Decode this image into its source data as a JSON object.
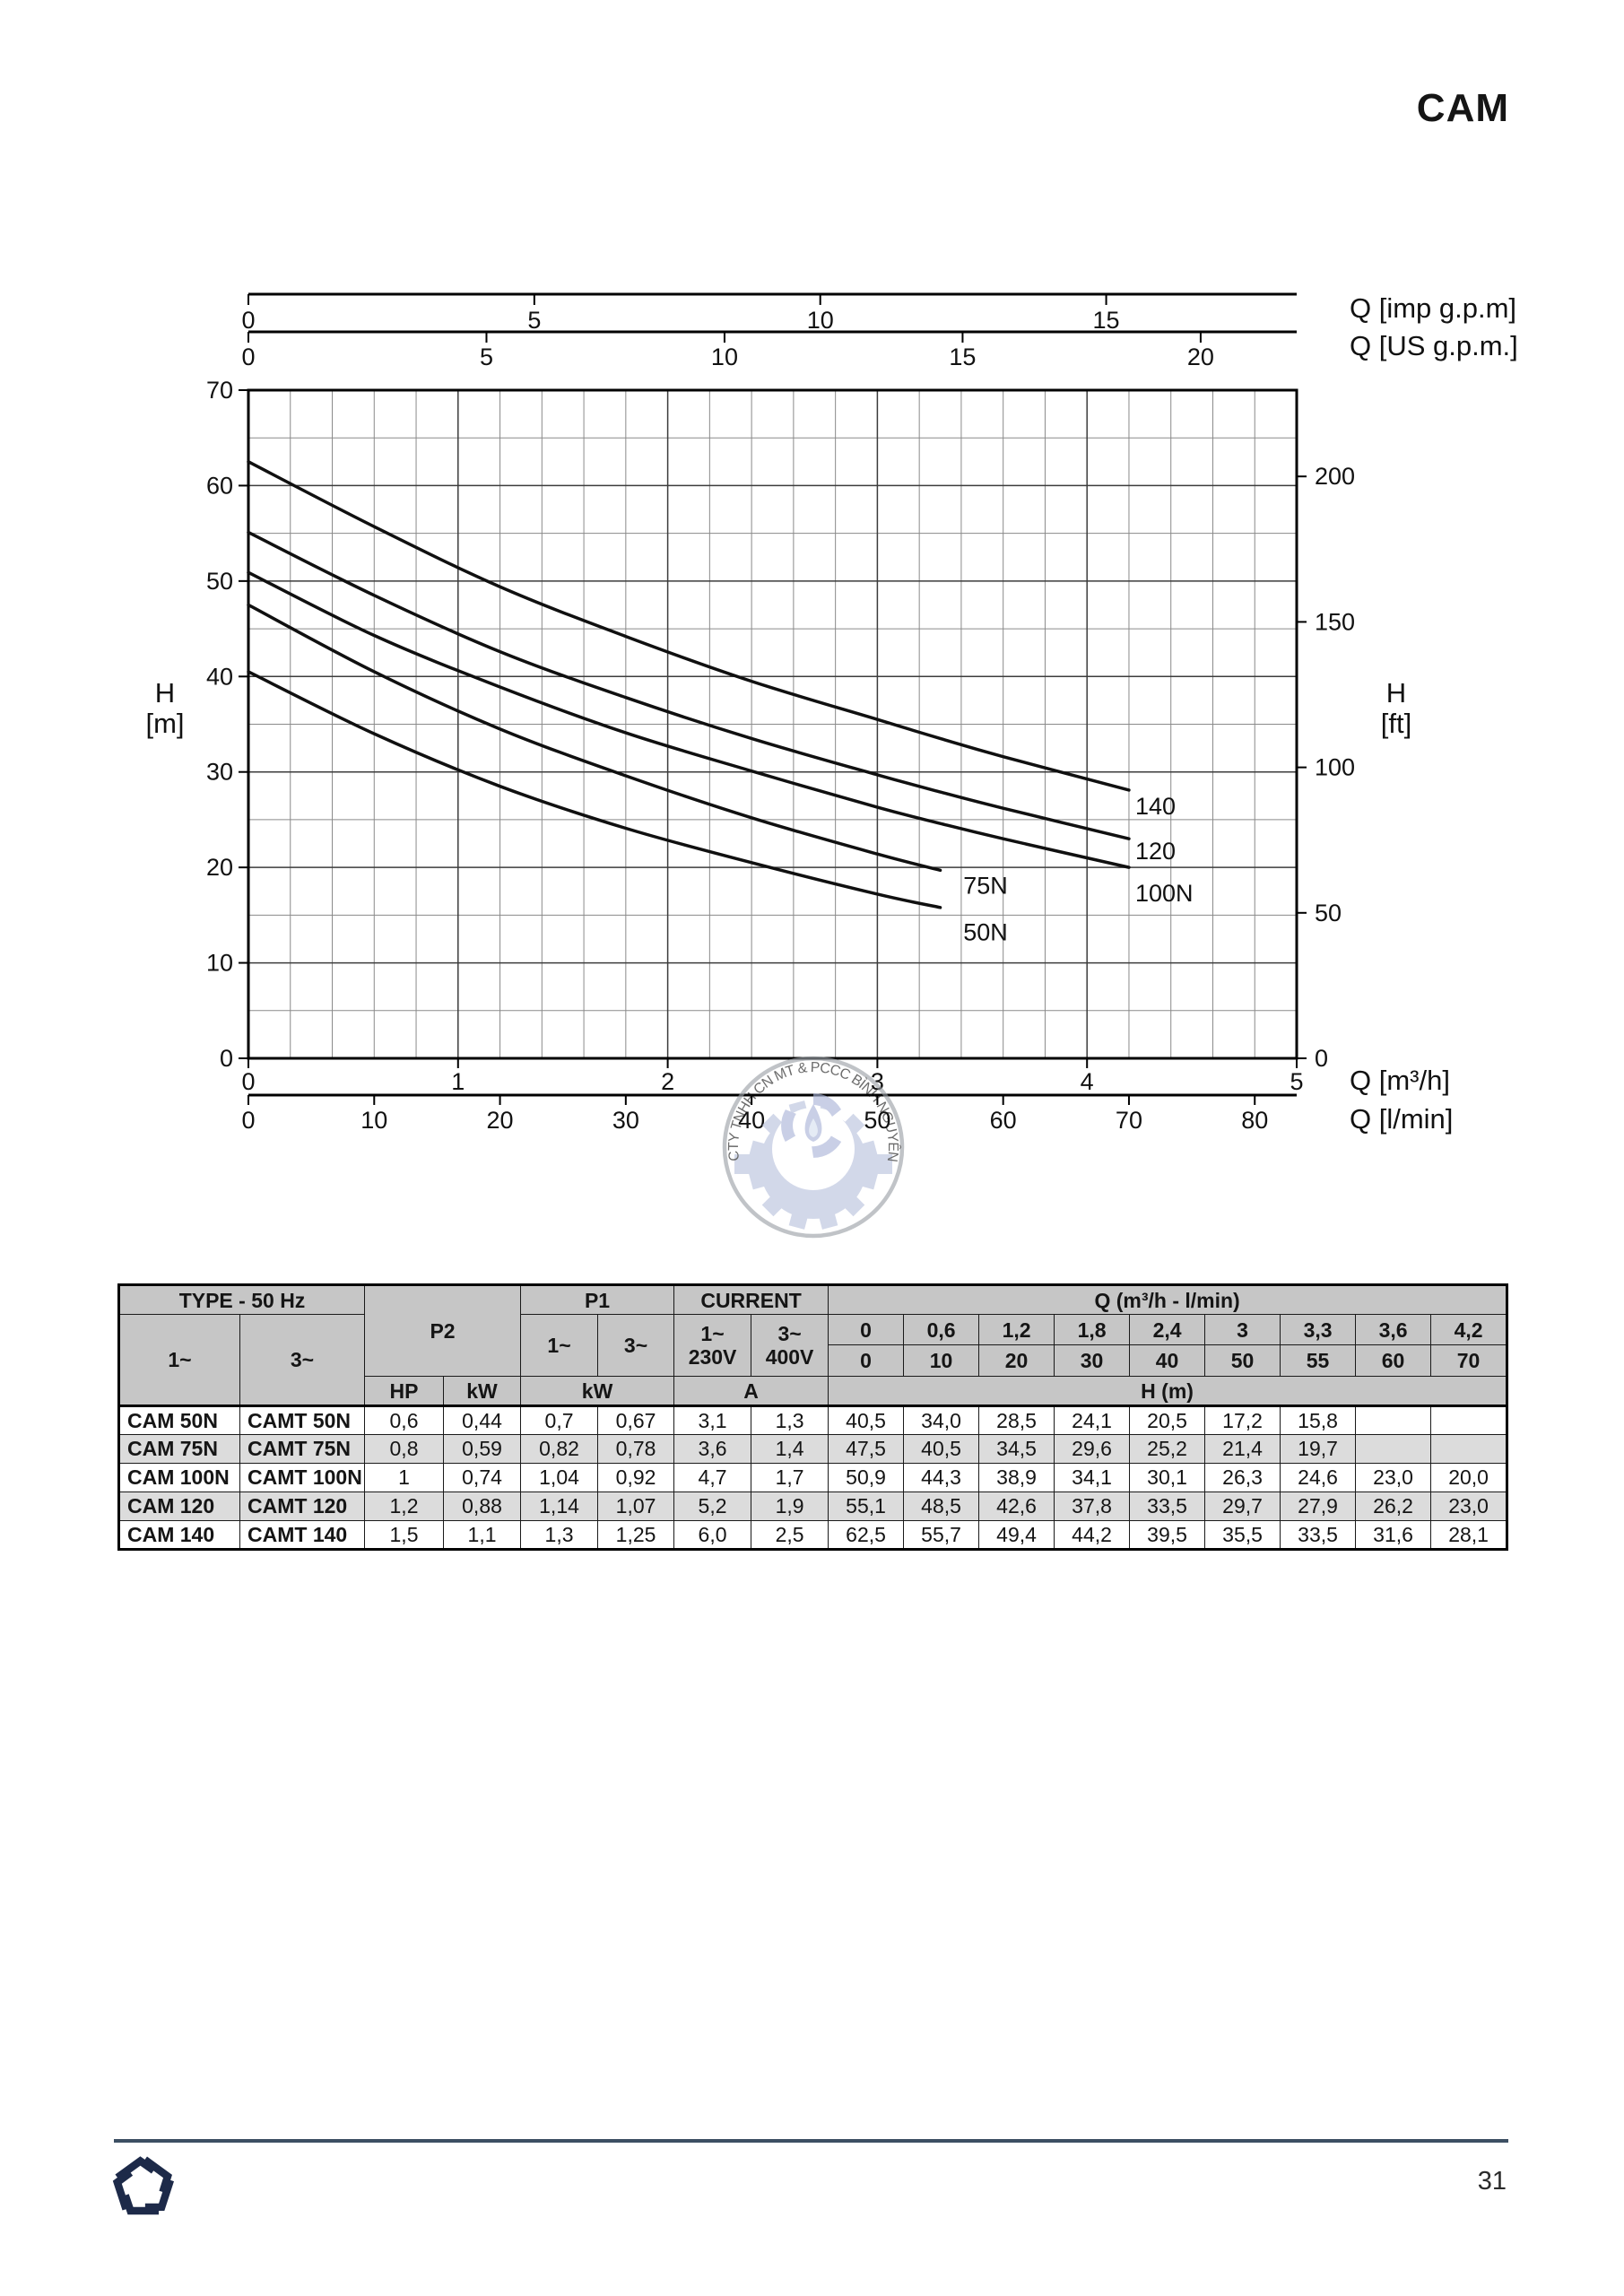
{
  "page": {
    "title": "CAM",
    "page_number": "31"
  },
  "chart": {
    "top_axis1_label": "Q [imp g.p.m]",
    "top_axis2_label": "Q [US g.p.m.]",
    "left_axis_label_line1": "H",
    "left_axis_label_line2": "[m]",
    "right_axis_label_line1": "H",
    "right_axis_label_line2": "[ft]",
    "bottom_axis1_label": "Q [m³/h]",
    "bottom_axis2_label": "Q [l/min]"
  },
  "chart_data": {
    "type": "line",
    "title": "",
    "xlabel": "Q [m³/h]",
    "ylabel": "H [m]",
    "xlim": [
      0,
      5
    ],
    "ylim": [
      0,
      70
    ],
    "grid": "on",
    "x_axis_m3h": {
      "ticks": [
        0,
        1,
        2,
        3,
        4,
        5
      ],
      "minor_step": 0.2
    },
    "x_axis_lmin": {
      "ticks": [
        0,
        10,
        20,
        30,
        40,
        50,
        60,
        70,
        80
      ]
    },
    "x_axis_imp_gpm": {
      "ticks": [
        0,
        5,
        10,
        15
      ]
    },
    "x_axis_us_gpm": {
      "ticks": [
        0,
        5,
        10,
        15,
        20
      ]
    },
    "y_axis_m": {
      "ticks": [
        0,
        10,
        20,
        30,
        40,
        50,
        60,
        70
      ],
      "minor_step": 5
    },
    "y_axis_ft": {
      "ticks": [
        0,
        50,
        100,
        150,
        200
      ]
    },
    "q_m3h": [
      0,
      0.6,
      1.2,
      1.8,
      2.4,
      3,
      3.3,
      3.6,
      4.2
    ],
    "series": [
      {
        "name": "50N",
        "h": [
          40.5,
          34.0,
          28.5,
          24.1,
          20.5,
          17.2,
          15.8
        ],
        "label_at": [
          3.41,
          13.2
        ]
      },
      {
        "name": "75N",
        "h": [
          47.5,
          40.5,
          34.5,
          29.6,
          25.2,
          21.4,
          19.7
        ],
        "label_at": [
          3.41,
          18.1
        ]
      },
      {
        "name": "100N",
        "h": [
          50.9,
          44.3,
          38.9,
          34.1,
          30.1,
          26.3,
          24.6,
          23.0,
          20.0
        ],
        "label_at": [
          4.23,
          17.3
        ]
      },
      {
        "name": "120",
        "h": [
          55.1,
          48.5,
          42.6,
          37.8,
          33.5,
          29.7,
          27.9,
          26.2,
          23.0
        ],
        "label_at": [
          4.23,
          21.7
        ]
      },
      {
        "name": "140",
        "h": [
          62.5,
          55.7,
          49.4,
          44.2,
          39.5,
          35.5,
          33.5,
          31.6,
          28.1
        ],
        "label_at": [
          4.23,
          26.4
        ]
      }
    ]
  },
  "watermark": {
    "text": "CTY TNHH CN MT & PCCC BÌNH NGUYÊN"
  },
  "table": {
    "headers": {
      "type": "TYPE - 50 Hz",
      "ph1": "1~",
      "ph3": "3~",
      "p2": "P2",
      "p1": "P1",
      "current": "CURRENT",
      "p1_1": "1~",
      "p1_3": "3~",
      "cur1_l1": "1~",
      "cur1_l2": "230V",
      "cur3_l1": "3~",
      "cur3_l2": "400V",
      "hp": "HP",
      "kw": "kW",
      "kw2": "kW",
      "a": "A",
      "q": "Q (m³/h - l/min)",
      "hm": "H (m)"
    },
    "q_m3h_row": [
      "0",
      "0,6",
      "1,2",
      "1,8",
      "2,4",
      "3",
      "3,3",
      "3,6",
      "4,2"
    ],
    "q_lmin_row": [
      "0",
      "10",
      "20",
      "30",
      "40",
      "50",
      "55",
      "60",
      "70"
    ],
    "rows": [
      {
        "m1": "CAM 50N",
        "m3": "CAMT 50N",
        "p2_hp": "0,6",
        "p2_kw": "0,44",
        "p1_1": "0,7",
        "p1_3": "0,67",
        "a1": "3,1",
        "a3": "1,3",
        "h": [
          "40,5",
          "34,0",
          "28,5",
          "24,1",
          "20,5",
          "17,2",
          "15,8",
          "",
          ""
        ]
      },
      {
        "m1": "CAM 75N",
        "m3": "CAMT 75N",
        "p2_hp": "0,8",
        "p2_kw": "0,59",
        "p1_1": "0,82",
        "p1_3": "0,78",
        "a1": "3,6",
        "a3": "1,4",
        "h": [
          "47,5",
          "40,5",
          "34,5",
          "29,6",
          "25,2",
          "21,4",
          "19,7",
          "",
          ""
        ]
      },
      {
        "m1": "CAM 100N",
        "m3": "CAMT 100N",
        "p2_hp": "1",
        "p2_kw": "0,74",
        "p1_1": "1,04",
        "p1_3": "0,92",
        "a1": "4,7",
        "a3": "1,7",
        "h": [
          "50,9",
          "44,3",
          "38,9",
          "34,1",
          "30,1",
          "26,3",
          "24,6",
          "23,0",
          "20,0"
        ]
      },
      {
        "m1": "CAM 120",
        "m3": "CAMT 120",
        "p2_hp": "1,2",
        "p2_kw": "0,88",
        "p1_1": "1,14",
        "p1_3": "1,07",
        "a1": "5,2",
        "a3": "1,9",
        "h": [
          "55,1",
          "48,5",
          "42,6",
          "37,8",
          "33,5",
          "29,7",
          "27,9",
          "26,2",
          "23,0"
        ]
      },
      {
        "m1": "CAM 140",
        "m3": "CAMT 140",
        "p2_hp": "1,5",
        "p2_kw": "1,1",
        "p1_1": "1,3",
        "p1_3": "1,25",
        "a1": "6,0",
        "a3": "2,5",
        "h": [
          "62,5",
          "55,7",
          "49,4",
          "44,2",
          "39,5",
          "35,5",
          "33,5",
          "31,6",
          "28,1"
        ]
      }
    ]
  },
  "footer": {
    "page_number": "31"
  }
}
